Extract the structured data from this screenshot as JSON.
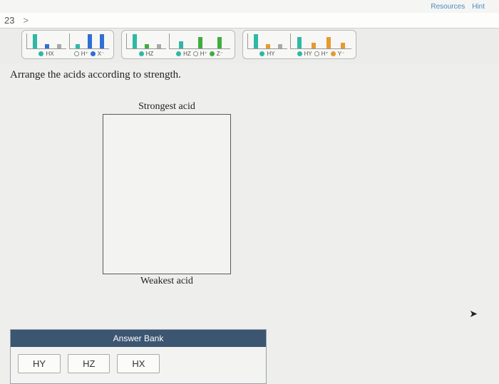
{
  "toolbar": {
    "resources": "Resources",
    "hint": "Hint"
  },
  "nav": {
    "question_number": "23",
    "chevron": ">"
  },
  "diagrams": {
    "colors": {
      "teal": "#2fb8a6",
      "blue": "#2f6fd6",
      "white_ring": "#ffffff",
      "green": "#3fae3f",
      "orange": "#e69a2f",
      "gray": "#a9a9a7"
    },
    "pairs": [
      {
        "left": {
          "bars": [
            {
              "h": 20,
              "c": "#2fb8a6"
            },
            {
              "h": 6,
              "c": "#2f6fd6"
            },
            {
              "h": 6,
              "c": "#a9a9a7"
            }
          ],
          "legend": [
            {
              "c": "#2fb8a6",
              "t": "HX"
            }
          ]
        },
        "right": {
          "bars": [
            {
              "h": 6,
              "c": "#2fb8a6"
            },
            {
              "h": 20,
              "c": "#2f6fd6"
            },
            {
              "h": 20,
              "c": "#2f6fd6"
            }
          ],
          "legend": [
            {
              "c": "#ffffff",
              "t": "H⁺",
              "ring": true
            },
            {
              "c": "#2f6fd6",
              "t": "X⁻"
            }
          ]
        }
      },
      {
        "left": {
          "bars": [
            {
              "h": 20,
              "c": "#2fb8a6"
            },
            {
              "h": 6,
              "c": "#3fae3f"
            },
            {
              "h": 6,
              "c": "#a9a9a7"
            }
          ],
          "legend": [
            {
              "c": "#2fb8a6",
              "t": "HZ"
            }
          ]
        },
        "right": {
          "bars": [
            {
              "h": 10,
              "c": "#2fb8a6"
            },
            {
              "h": 16,
              "c": "#3fae3f"
            },
            {
              "h": 16,
              "c": "#3fae3f"
            }
          ],
          "legend": [
            {
              "c": "#2fb8a6",
              "t": "HZ"
            },
            {
              "c": "#ffffff",
              "t": "H⁺",
              "ring": true
            },
            {
              "c": "#3fae3f",
              "t": "Z⁻"
            }
          ],
          "wide": true
        }
      },
      {
        "left": {
          "bars": [
            {
              "h": 20,
              "c": "#2fb8a6"
            },
            {
              "h": 6,
              "c": "#e69a2f"
            },
            {
              "h": 6,
              "c": "#a9a9a7"
            }
          ],
          "legend": [
            {
              "c": "#2fb8a6",
              "t": "HY"
            }
          ]
        },
        "right": {
          "bars": [
            {
              "h": 16,
              "c": "#2fb8a6"
            },
            {
              "h": 8,
              "c": "#e69a2f"
            },
            {
              "h": 16,
              "c": "#e69a2f"
            },
            {
              "h": 8,
              "c": "#e69a2f"
            }
          ],
          "legend": [
            {
              "c": "#2fb8a6",
              "t": "HY"
            },
            {
              "c": "#ffffff",
              "t": "H⁺",
              "ring": true
            },
            {
              "c": "#e69a2f",
              "t": "Y⁻"
            }
          ],
          "wide": true
        }
      }
    ]
  },
  "instruction": "Arrange the acids according to strength.",
  "rank": {
    "top_label": "Strongest acid",
    "bottom_label": "Weakest acid"
  },
  "answer_bank": {
    "title": "Answer Bank",
    "items": [
      "HY",
      "HZ",
      "HX"
    ]
  }
}
